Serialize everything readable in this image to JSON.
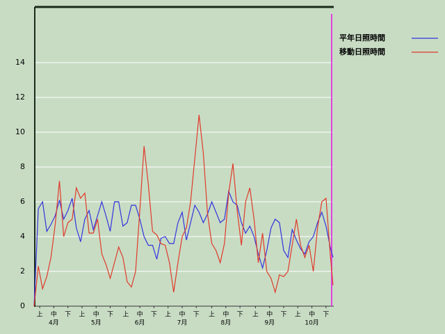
{
  "chart_data": {
    "type": "line",
    "x": [
      0,
      3,
      6,
      9,
      12,
      15,
      18,
      21,
      24,
      27,
      30,
      33,
      36,
      39,
      42,
      45,
      48,
      51,
      54,
      57,
      60,
      63,
      66,
      69,
      72,
      75,
      78,
      81,
      84,
      87,
      90,
      93,
      96,
      99,
      102,
      105,
      108,
      111,
      114,
      117,
      120,
      123,
      126,
      129,
      132,
      135,
      138,
      141,
      144,
      147,
      150,
      153,
      156,
      159,
      162,
      165,
      168,
      171,
      174,
      177,
      180,
      183,
      186,
      189,
      192,
      195,
      198,
      201,
      204,
      207,
      210,
      212
    ],
    "xlim": [
      0,
      212
    ],
    "xticks": [
      {
        "value": 4,
        "label": "上"
      },
      {
        "value": 14,
        "label": "中"
      },
      {
        "value": 24,
        "label": "下"
      },
      {
        "value": 34,
        "label": "上"
      },
      {
        "value": 44,
        "label": "中"
      },
      {
        "value": 54,
        "label": "下"
      },
      {
        "value": 65,
        "label": "上"
      },
      {
        "value": 75,
        "label": "中"
      },
      {
        "value": 85,
        "label": "下"
      },
      {
        "value": 95,
        "label": "上"
      },
      {
        "value": 105,
        "label": "中"
      },
      {
        "value": 115,
        "label": "下"
      },
      {
        "value": 126,
        "label": "上"
      },
      {
        "value": 136,
        "label": "中"
      },
      {
        "value": 146,
        "label": "下"
      },
      {
        "value": 157,
        "label": "上"
      },
      {
        "value": 167,
        "label": "中"
      },
      {
        "value": 177,
        "label": "下"
      },
      {
        "value": 187,
        "label": "上"
      },
      {
        "value": 197,
        "label": "中"
      },
      {
        "value": 207,
        "label": "下"
      }
    ],
    "months": [
      "4月",
      "5月",
      "6月",
      "7月",
      "8月",
      "9月",
      "10月"
    ],
    "ylim": [
      0,
      17.2
    ],
    "yticks": [
      0,
      2,
      4,
      6,
      8,
      10,
      12,
      14
    ],
    "grid": true,
    "series": [
      {
        "name": "平年日照時間",
        "color": "#3333dd",
        "values": [
          0,
          5.6,
          6,
          4.3,
          4.7,
          5.2,
          6.1,
          5,
          5.5,
          6.2,
          4.5,
          3.7,
          5,
          5.5,
          4.4,
          5.2,
          6,
          5.2,
          4.3,
          6,
          6,
          4.6,
          4.8,
          5.8,
          5.8,
          5,
          4,
          3.5,
          3.5,
          2.7,
          3.9,
          4,
          3.6,
          3.6,
          4.8,
          5.4,
          3.8,
          4.8,
          5.8,
          5.4,
          4.8,
          5.3,
          6,
          5.4,
          4.8,
          5,
          6.6,
          6,
          5.8,
          4.8,
          4.2,
          4.6,
          4,
          3,
          2.2,
          3.2,
          4.5,
          5,
          4.8,
          3.2,
          2.8,
          4.4,
          3.8,
          3.3,
          3,
          3.7,
          4,
          4.8,
          5.4,
          4.6,
          3.4,
          2.8
        ]
      },
      {
        "name": "移動日照時間",
        "color": "#e03a2a",
        "values": [
          0,
          2.3,
          1,
          1.7,
          2.8,
          4.7,
          7.2,
          4,
          4.8,
          5,
          6.8,
          6.2,
          6.5,
          4.2,
          4.2,
          5,
          3,
          2.4,
          1.6,
          2.5,
          3.4,
          2.8,
          1.4,
          1.1,
          2,
          5.5,
          9.2,
          7,
          4.3,
          4.1,
          3.6,
          3.5,
          2.5,
          0.8,
          2.5,
          4,
          4.5,
          6,
          8.5,
          11,
          8.8,
          5.3,
          3.6,
          3.2,
          2.5,
          3.6,
          6.5,
          8.2,
          5.5,
          3.5,
          6,
          6.8,
          5,
          2.5,
          4.2,
          2,
          1.6,
          0.8,
          1.8,
          1.7,
          2,
          3.5,
          5,
          3.5,
          2.8,
          3.5,
          2,
          4.5,
          6,
          6.2,
          3,
          1.2
        ]
      }
    ]
  }
}
